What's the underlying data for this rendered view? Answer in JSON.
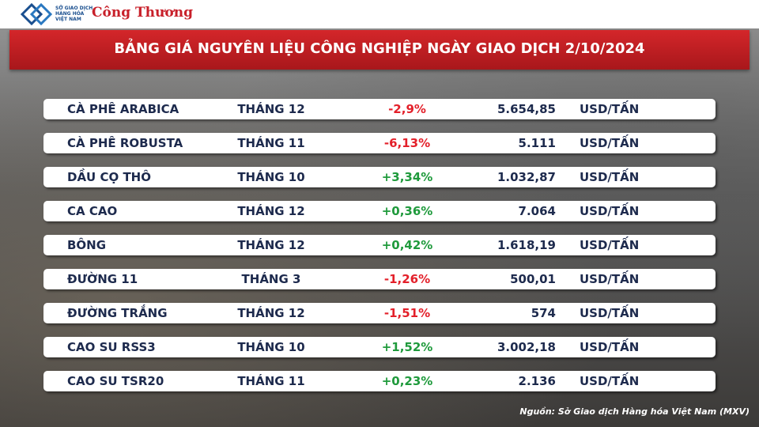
{
  "header": {
    "logo_lines": [
      "SỞ GIAO DỊCH",
      "HÀNG HÓA",
      "VIỆT NAM"
    ],
    "brand": "Công Thương"
  },
  "title": "BẢNG GIÁ NGUYÊN LIỆU CÔNG NGHIỆP NGÀY GIAO DỊCH 2/10/2024",
  "table": {
    "rows": [
      [
        "CÀ PHÊ ARABICA",
        "THÁNG 12",
        "-2,9%",
        "5.654,85",
        "USD/TẤN"
      ],
      [
        "CÀ PHÊ ROBUSTA",
        "THÁNG 11",
        "-6,13%",
        "5.111",
        "USD/TẤN"
      ],
      [
        "DẦU CỌ THÔ",
        "THÁNG 10",
        "+3,34%",
        "1.032,87",
        "USD/TẤN"
      ],
      [
        "CA CAO",
        "THÁNG 12",
        "+0,36%",
        "7.064",
        "USD/TẤN"
      ],
      [
        "BÔNG",
        "THÁNG 12",
        "+0,42%",
        "1.618,19",
        "USD/TẤN"
      ],
      [
        "ĐƯỜNG 11",
        "THÁNG 3",
        "-1,26%",
        "500,01",
        "USD/TẤN"
      ],
      [
        "ĐƯỜNG TRẮNG",
        "THÁNG 12",
        "-1,51%",
        "574",
        "USD/TẤN"
      ],
      [
        "CAO SU RSS3",
        "THÁNG 10",
        "+1,52%",
        "3.002,18",
        "USD/TẤN"
      ],
      [
        "CAO SU TSR20",
        "THÁNG 11",
        "+0,23%",
        "2.136",
        "USD/TẤN"
      ]
    ]
  },
  "source": "Nguồn: Sở Giao dịch Hàng hóa Việt Nam (MXV)"
}
